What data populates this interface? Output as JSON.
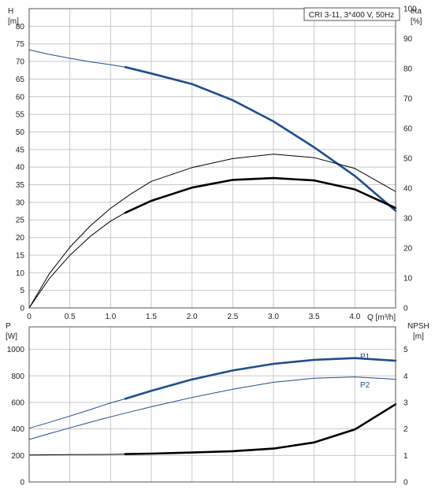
{
  "chart_data": [
    {
      "type": "line",
      "title": "CRI 3-11, 3*400 V, 50Hz",
      "xlabel": "Q [m³/h]",
      "ylabel_left": [
        "H",
        "[m]"
      ],
      "ylabel_right": [
        "eta",
        "[%]"
      ],
      "xlim": [
        0,
        4.5
      ],
      "ylim_left": [
        0,
        85
      ],
      "ylim_right": [
        0,
        100
      ],
      "x_ticks": [
        "0",
        "0.5",
        "1.0",
        "1.5",
        "2.0",
        "2.5",
        "3.0",
        "3.5",
        "4.0"
      ],
      "y_left_ticks": [
        "0",
        "5",
        "10",
        "15",
        "20",
        "25",
        "30",
        "35",
        "40",
        "45",
        "50",
        "55",
        "60",
        "65",
        "70",
        "75",
        "80"
      ],
      "y_right_ticks": [
        "0",
        "10",
        "20",
        "30",
        "40",
        "50",
        "60",
        "70",
        "80",
        "90",
        "100"
      ],
      "grid": true,
      "series": [
        {
          "id": "head",
          "axis": "left",
          "color": "#1f4e8c",
          "thin_x": [
            0,
            0.25,
            0.5,
            0.75,
            1.0,
            1.18
          ],
          "thin_y": [
            73.3,
            72.0,
            70.9,
            69.9,
            69.1,
            68.4
          ],
          "bold_x": [
            1.18,
            1.5,
            2.0,
            2.5,
            3.0,
            3.5,
            4.0,
            4.5
          ],
          "bold_y": [
            68.4,
            66.6,
            63.6,
            59.0,
            53.0,
            45.6,
            37.5,
            27.6
          ]
        },
        {
          "id": "eta-upper",
          "axis": "right",
          "color": "#000000",
          "thin_x": [
            0,
            0.25,
            0.5,
            0.75,
            1.0,
            1.25,
            1.5,
            2.0,
            2.5,
            3.0,
            3.5,
            4.0,
            4.5
          ],
          "thin_y": [
            0,
            11.5,
            20.3,
            27.4,
            33.3,
            38.1,
            42.3,
            46.9,
            49.9,
            51.4,
            50.2,
            46.6,
            38.9
          ]
        },
        {
          "id": "eta-lower",
          "axis": "right",
          "color": "#000000",
          "thin_x": [
            0,
            0.25,
            0.5,
            0.75,
            1.0,
            1.18
          ],
          "thin_y": [
            0,
            9.9,
            17.6,
            23.9,
            29.0,
            31.8
          ],
          "bold_x": [
            1.18,
            1.5,
            2.0,
            2.5,
            3.0,
            3.5,
            4.0,
            4.5
          ],
          "bold_y": [
            31.8,
            35.8,
            40.2,
            42.8,
            43.4,
            42.6,
            39.6,
            33.4
          ]
        }
      ]
    },
    {
      "type": "line",
      "xlabel": "",
      "ylabel_left": [
        "P",
        "[W]"
      ],
      "ylabel_right": [
        "NPSH",
        "[m]"
      ],
      "xlim": [
        0,
        4.5
      ],
      "ylim_left": [
        0,
        1170
      ],
      "ylim_right": [
        0,
        5.85
      ],
      "y_left_ticks": [
        "0",
        "200",
        "400",
        "600",
        "800",
        "1000"
      ],
      "y_right_ticks": [
        "0",
        "1",
        "2",
        "3",
        "4",
        "5"
      ],
      "grid": true,
      "series": [
        {
          "id": "p1",
          "name": "P1",
          "axis": "left",
          "color": "#1f4e8c",
          "thin_x": [
            0,
            0.25,
            0.5,
            0.75,
            1.0,
            1.18
          ],
          "thin_y": [
            405,
            450,
            497,
            546,
            596,
            627
          ],
          "bold_x": [
            1.18,
            1.5,
            2.0,
            2.5,
            3.0,
            3.5,
            4.0,
            4.5
          ],
          "bold_y": [
            627,
            688,
            773,
            841,
            891,
            921,
            934,
            914
          ]
        },
        {
          "id": "p2",
          "name": "P2",
          "axis": "left",
          "color": "#1f4e8c",
          "thin_x": [
            0,
            0.25,
            0.5,
            0.75,
            1.0,
            1.25,
            1.5,
            2.0,
            2.5,
            3.0,
            3.5,
            4.0,
            4.5
          ],
          "thin_y": [
            321,
            365,
            408,
            451,
            491,
            530,
            567,
            637,
            699,
            752,
            782,
            792,
            775
          ]
        },
        {
          "id": "npsh",
          "axis": "right",
          "color": "#000000",
          "thin_x": [
            0,
            0.5,
            1.0,
            1.18
          ],
          "thin_y": [
            1.02,
            1.03,
            1.04,
            1.05
          ],
          "bold_x": [
            1.18,
            1.5,
            2.0,
            2.5,
            3.0,
            3.5,
            4.0,
            4.5
          ],
          "bold_y": [
            1.05,
            1.07,
            1.11,
            1.16,
            1.26,
            1.49,
            1.98,
            2.93
          ]
        }
      ]
    }
  ]
}
